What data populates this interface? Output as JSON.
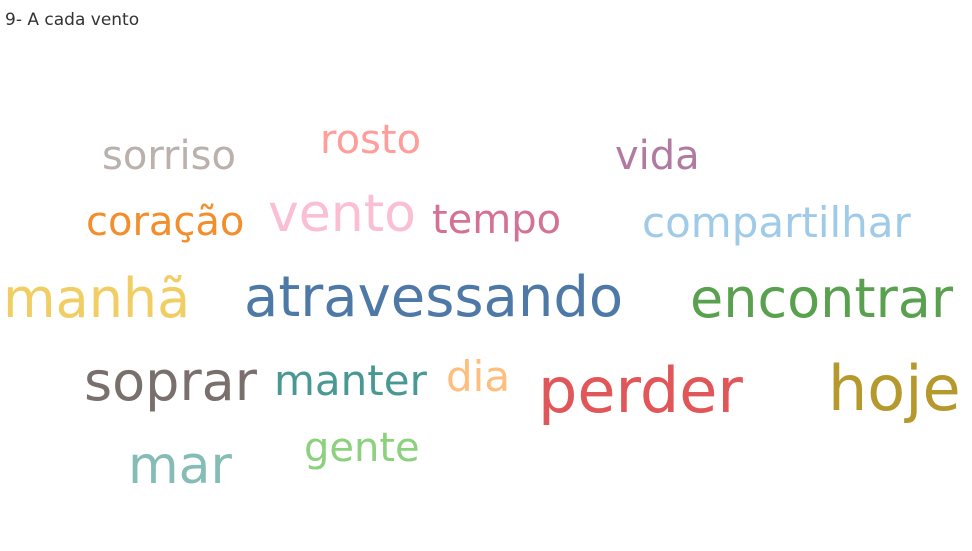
{
  "title": "9- A cada vento",
  "chart_data": {
    "type": "wordcloud",
    "words": [
      {
        "text": "atravessando",
        "color": "#4e79a7"
      },
      {
        "text": "encontrar",
        "color": "#59a14f"
      },
      {
        "text": "perder",
        "color": "#e15759"
      },
      {
        "text": "hoje",
        "color": "#b6992d"
      },
      {
        "text": "manhã",
        "color": "#f1ce63"
      },
      {
        "text": "soprar",
        "color": "#79706e"
      },
      {
        "text": "vento",
        "color": "#fabfd2"
      },
      {
        "text": "mar",
        "color": "#86bcb6"
      },
      {
        "text": "compartilhar",
        "color": "#a0cbe8"
      },
      {
        "text": "coração",
        "color": "#f28e2b"
      },
      {
        "text": "tempo",
        "color": "#d37295"
      },
      {
        "text": "manter",
        "color": "#499894"
      },
      {
        "text": "sorriso",
        "color": "#bab0ac"
      },
      {
        "text": "vida",
        "color": "#b07aa1"
      },
      {
        "text": "rosto",
        "color": "#ff9d9a"
      },
      {
        "text": "gente",
        "color": "#8cd17d"
      },
      {
        "text": "dia",
        "color": "#ffbe7d"
      }
    ]
  }
}
